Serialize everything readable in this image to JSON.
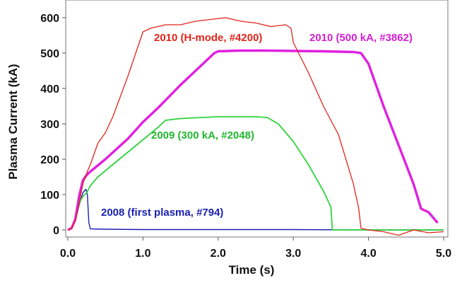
{
  "chart_data": {
    "type": "line",
    "title": "",
    "xlabel": "Time (s)",
    "ylabel": "Plasma Current (kA)",
    "xlim": [
      0,
      5.0
    ],
    "ylim": [
      -20,
      640
    ],
    "xticks": [
      0.0,
      1.0,
      2.0,
      3.0,
      4.0,
      5.0
    ],
    "xtick_labels": [
      "0.0",
      "1.0",
      "2.0",
      "3.0",
      "4.0",
      "5.0"
    ],
    "yticks": [
      0,
      100,
      200,
      300,
      400,
      500,
      600
    ],
    "ytick_labels": [
      "0",
      "100",
      "200",
      "300",
      "400",
      "500",
      "600"
    ],
    "grid": false,
    "legend": "none",
    "series": [
      {
        "label": "2010 (H-mode, #4200)",
        "color": "#e0251b",
        "x": [
          0.0,
          0.05,
          0.1,
          0.15,
          0.2,
          0.25,
          0.3,
          0.4,
          0.5,
          0.6,
          0.8,
          1.0,
          1.1,
          1.3,
          1.5,
          1.7,
          1.9,
          2.1,
          2.3,
          2.5,
          2.7,
          2.9,
          2.97,
          3.0,
          3.2,
          3.4,
          3.6,
          3.8,
          3.87,
          3.9,
          4.0,
          4.2,
          4.4,
          4.6,
          4.8,
          5.0
        ],
        "y": [
          0,
          5,
          25,
          75,
          130,
          160,
          185,
          245,
          275,
          320,
          435,
          560,
          570,
          580,
          580,
          590,
          595,
          600,
          590,
          585,
          575,
          580,
          570,
          530,
          445,
          350,
          270,
          130,
          60,
          5,
          0,
          -5,
          -15,
          0,
          -8,
          -5
        ]
      },
      {
        "label": "2010 (500 kA, #3862)",
        "color": "#e020e0",
        "x": [
          0.0,
          0.05,
          0.1,
          0.15,
          0.2,
          0.25,
          0.3,
          0.5,
          0.8,
          1.0,
          1.2,
          1.5,
          1.8,
          1.95,
          2.0,
          2.3,
          2.6,
          3.0,
          3.4,
          3.8,
          3.9,
          4.0,
          4.2,
          4.4,
          4.6,
          4.7,
          4.8,
          4.92
        ],
        "y": [
          0,
          5,
          30,
          95,
          140,
          155,
          165,
          200,
          258,
          305,
          345,
          410,
          470,
          500,
          505,
          507,
          507,
          506,
          505,
          503,
          500,
          470,
          350,
          240,
          130,
          60,
          50,
          20
        ]
      },
      {
        "label": "2009 (300 kA, #2048)",
        "color": "#2ed43c",
        "x": [
          0.0,
          0.05,
          0.1,
          0.15,
          0.2,
          0.25,
          0.3,
          0.4,
          0.6,
          0.8,
          1.0,
          1.2,
          1.3,
          1.5,
          1.8,
          2.0,
          2.2,
          2.5,
          2.65,
          2.8,
          3.0,
          3.2,
          3.4,
          3.5,
          3.52,
          3.55,
          3.7,
          4.0,
          4.5,
          5.0
        ],
        "y": [
          0,
          5,
          30,
          75,
          95,
          105,
          125,
          150,
          185,
          220,
          255,
          290,
          310,
          315,
          318,
          320,
          320,
          320,
          318,
          300,
          250,
          185,
          110,
          65,
          0,
          0,
          0,
          0,
          0,
          0
        ]
      },
      {
        "label": "2008 (first plasma, #794)",
        "color": "#1a22b0",
        "x": [
          0.0,
          0.05,
          0.1,
          0.15,
          0.2,
          0.24,
          0.26,
          0.28,
          0.3,
          0.5,
          1.0,
          2.0,
          3.0,
          4.0,
          5.0
        ],
        "y": [
          0,
          5,
          25,
          70,
          105,
          115,
          100,
          20,
          3,
          2,
          1,
          1,
          1,
          0,
          0
        ]
      }
    ]
  }
}
